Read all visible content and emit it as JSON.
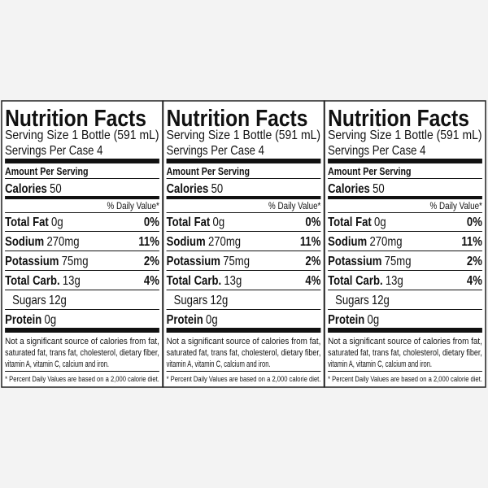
{
  "panels": [
    {
      "title": "Nutrition Facts",
      "serving_size": "Serving Size 1 Bottle (591 mL)",
      "servings_per_case": "Servings Per Case 4",
      "amount_per_serving": "Amount Per Serving",
      "calories": {
        "label": "Calories",
        "value": "50"
      },
      "daily_value_header": "% Daily Value*",
      "nutrients": [
        {
          "name": "Total Fat",
          "amount": "0g",
          "dv": "0%"
        },
        {
          "name": "Sodium",
          "amount": "270mg",
          "dv": "11%"
        },
        {
          "name": "Potassium",
          "amount": "75mg",
          "dv": "2%"
        },
        {
          "name": "Total Carb.",
          "amount": "13g",
          "dv": "4%"
        }
      ],
      "sugars": {
        "name": "Sugars",
        "amount": "12g"
      },
      "protein": {
        "name": "Protein",
        "amount": "0g"
      },
      "footnote": [
        "Not a significant source of calories from fat,",
        "saturated fat, trans fat, cholesterol, dietary fiber,",
        "vitamin A, vitamin C, calcium and iron."
      ],
      "percent_note": "* Percent Daily Values are based on a 2,000 calorie diet."
    },
    {
      "title": "Nutrition Facts",
      "serving_size": "Serving Size 1 Bottle (591 mL)",
      "servings_per_case": "Servings Per Case 4",
      "amount_per_serving": "Amount Per Serving",
      "calories": {
        "label": "Calories",
        "value": "50"
      },
      "daily_value_header": "% Daily Value*",
      "nutrients": [
        {
          "name": "Total Fat",
          "amount": "0g",
          "dv": "0%"
        },
        {
          "name": "Sodium",
          "amount": "270mg",
          "dv": "11%"
        },
        {
          "name": "Potassium",
          "amount": "75mg",
          "dv": "2%"
        },
        {
          "name": "Total Carb.",
          "amount": "13g",
          "dv": "4%"
        }
      ],
      "sugars": {
        "name": "Sugars",
        "amount": "12g"
      },
      "protein": {
        "name": "Protein",
        "amount": "0g"
      },
      "footnote": [
        "Not a significant source of calories from fat,",
        "saturated fat, trans fat, cholesterol, dietary fiber,",
        "vitamin A, vitamin C, calcium and iron."
      ],
      "percent_note": "* Percent Daily Values are based on a 2,000 calorie diet."
    },
    {
      "title": "Nutrition Facts",
      "serving_size": "Serving Size 1 Bottle (591 mL)",
      "servings_per_case": "Servings Per Case 4",
      "amount_per_serving": "Amount Per Serving",
      "calories": {
        "label": "Calories",
        "value": "50"
      },
      "daily_value_header": "% Daily Value*",
      "nutrients": [
        {
          "name": "Total Fat",
          "amount": "0g",
          "dv": "0%"
        },
        {
          "name": "Sodium",
          "amount": "270mg",
          "dv": "11%"
        },
        {
          "name": "Potassium",
          "amount": "75mg",
          "dv": "2%"
        },
        {
          "name": "Total Carb.",
          "amount": "13g",
          "dv": "4%"
        }
      ],
      "sugars": {
        "name": "Sugars",
        "amount": "12g"
      },
      "protein": {
        "name": "Protein",
        "amount": "0g"
      },
      "footnote": [
        "Not a significant source of calories from fat,",
        "saturated fat, trans fat, cholesterol, dietary fiber,",
        "vitamin A, vitamin C, calcium and iron."
      ],
      "percent_note": "* Percent Daily Values are based on a 2,000 calorie diet."
    }
  ]
}
